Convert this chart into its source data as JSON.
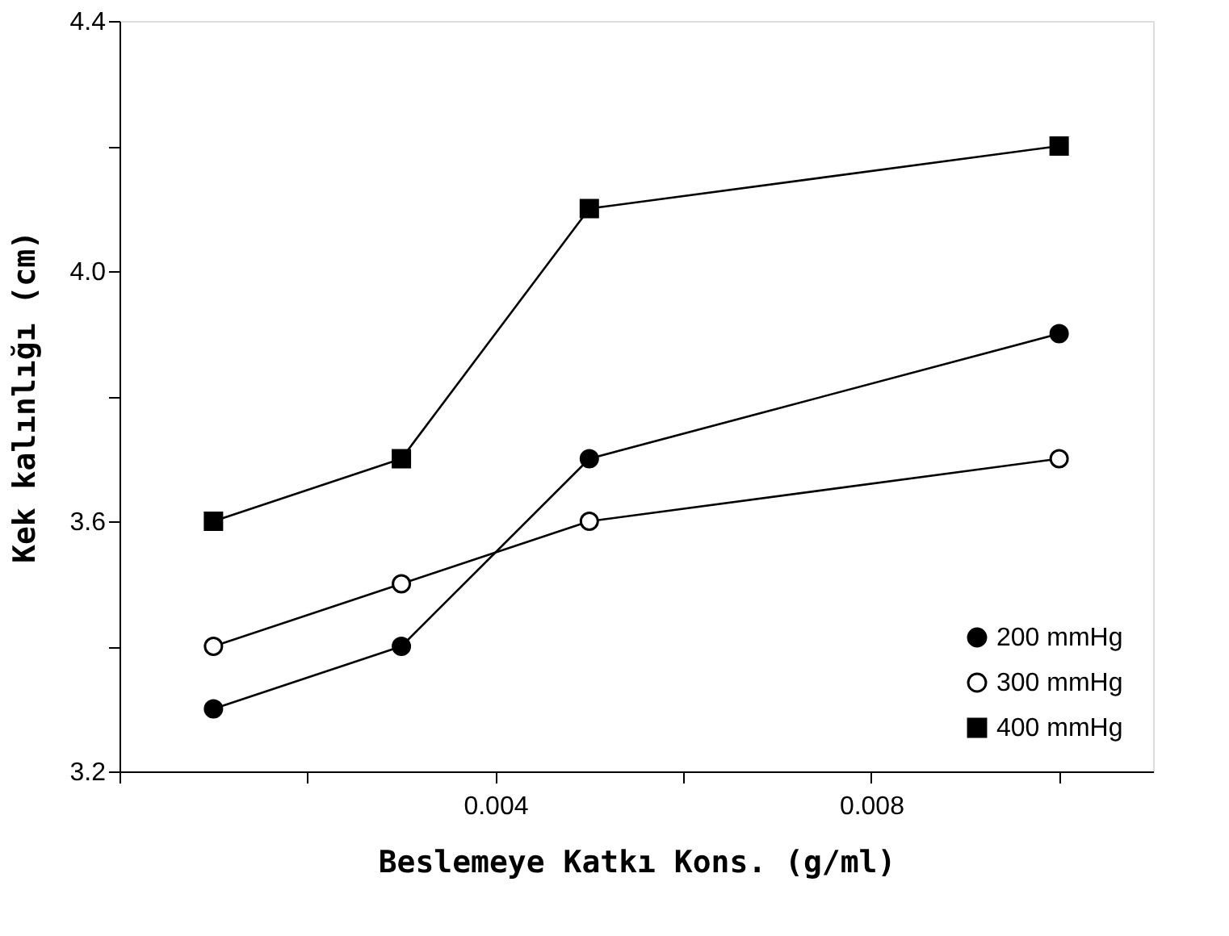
{
  "chart_data": {
    "type": "line",
    "xlabel": "Beslemeye Katkı Kons. (g/ml)",
    "ylabel": "Kek kalınlığı (cm)",
    "x": [
      0.001,
      0.003,
      0.005,
      0.01
    ],
    "series": [
      {
        "name": "200 mmHg",
        "color": "#000000",
        "marker": "circle",
        "values": [
          3.3,
          3.4,
          3.7,
          3.9
        ]
      },
      {
        "name": "300 mmHg",
        "color": "#000000",
        "marker": "circle-open",
        "values": [
          3.4,
          3.5,
          3.6,
          3.7
        ]
      },
      {
        "name": "400 mmHg",
        "color": "#000000",
        "marker": "square",
        "values": [
          3.6,
          3.7,
          4.1,
          4.2
        ]
      }
    ],
    "xlim": [
      0,
      0.011
    ],
    "xticks": [
      {
        "value": 0,
        "label": null
      },
      {
        "value": 0.002,
        "label": null
      },
      {
        "value": 0.004,
        "label": "0.004"
      },
      {
        "value": 0.006,
        "label": null
      },
      {
        "value": 0.008,
        "label": "0.008"
      },
      {
        "value": 0.01,
        "label": null
      }
    ],
    "ylim": [
      3.2,
      4.4
    ],
    "yticks": [
      {
        "value": 3.2,
        "label": "3.2"
      },
      {
        "value": 3.4,
        "label": null
      },
      {
        "value": 3.6,
        "label": "3.6"
      },
      {
        "value": 3.8,
        "label": null
      },
      {
        "value": 4.0,
        "label": "4.0"
      },
      {
        "value": 4.2,
        "label": null
      },
      {
        "value": 4.4,
        "label": "4.4"
      }
    ],
    "grid": false,
    "legend": "bottom right",
    "line_style": "solid"
  }
}
